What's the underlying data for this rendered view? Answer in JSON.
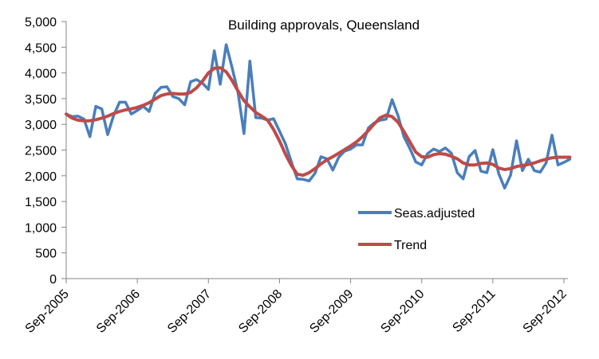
{
  "chart_data": {
    "type": "line",
    "title": "Building approvals, Queensland",
    "xlabel": "",
    "ylabel": "",
    "ylim": [
      0,
      5000
    ],
    "yticks": [
      "0",
      "500",
      "1,000",
      "1,500",
      "2,000",
      "2,500",
      "3,000",
      "3,500",
      "4,000",
      "4,500",
      "5,000"
    ],
    "ytick_values": [
      0,
      500,
      1000,
      1500,
      2000,
      2500,
      3000,
      3500,
      4000,
      4500,
      5000
    ],
    "xticks": [
      "Sep-2005",
      "Sep-2006",
      "Sep-2007",
      "Sep-2008",
      "Sep-2009",
      "Sep-2010",
      "Sep-2011",
      "Sep-2012"
    ],
    "x_start": "Sep-2005",
    "x_interval": "monthly",
    "grid": false,
    "legend_position": "right",
    "series": [
      {
        "name": "Seas.adjusted",
        "color": "#4a7ebb",
        "values": [
          3200,
          3150,
          3160,
          3100,
          2760,
          3350,
          3300,
          2800,
          3170,
          3430,
          3430,
          3200,
          3270,
          3350,
          3250,
          3600,
          3720,
          3730,
          3540,
          3500,
          3380,
          3830,
          3870,
          3800,
          3680,
          4430,
          3780,
          4550,
          4100,
          3620,
          2820,
          4230,
          3130,
          3120,
          3080,
          3110,
          2870,
          2620,
          2270,
          1940,
          1930,
          1900,
          2050,
          2370,
          2330,
          2110,
          2360,
          2480,
          2520,
          2600,
          2600,
          2930,
          3030,
          3080,
          3100,
          3480,
          3170,
          2760,
          2530,
          2270,
          2210,
          2430,
          2520,
          2470,
          2540,
          2440,
          2060,
          1940,
          2370,
          2490,
          2090,
          2060,
          2510,
          2040,
          1760,
          2010,
          2680,
          2100,
          2320,
          2100,
          2070,
          2250,
          2790,
          2210,
          2260,
          2320
        ]
      },
      {
        "name": "Trend",
        "color": "#be4b48",
        "values": [
          3200,
          3120,
          3080,
          3070,
          3070,
          3090,
          3120,
          3160,
          3210,
          3250,
          3280,
          3300,
          3330,
          3370,
          3420,
          3490,
          3560,
          3590,
          3600,
          3590,
          3590,
          3620,
          3710,
          3840,
          4000,
          4090,
          4100,
          4020,
          3850,
          3650,
          3460,
          3340,
          3230,
          3160,
          3080,
          2900,
          2680,
          2420,
          2200,
          2030,
          2010,
          2060,
          2140,
          2230,
          2310,
          2370,
          2440,
          2510,
          2580,
          2660,
          2760,
          2880,
          3010,
          3130,
          3180,
          3150,
          3040,
          2860,
          2660,
          2460,
          2370,
          2360,
          2410,
          2430,
          2420,
          2380,
          2330,
          2250,
          2210,
          2210,
          2240,
          2250,
          2220,
          2150,
          2120,
          2140,
          2180,
          2200,
          2220,
          2250,
          2290,
          2320,
          2350,
          2360,
          2360,
          2360
        ]
      }
    ]
  }
}
